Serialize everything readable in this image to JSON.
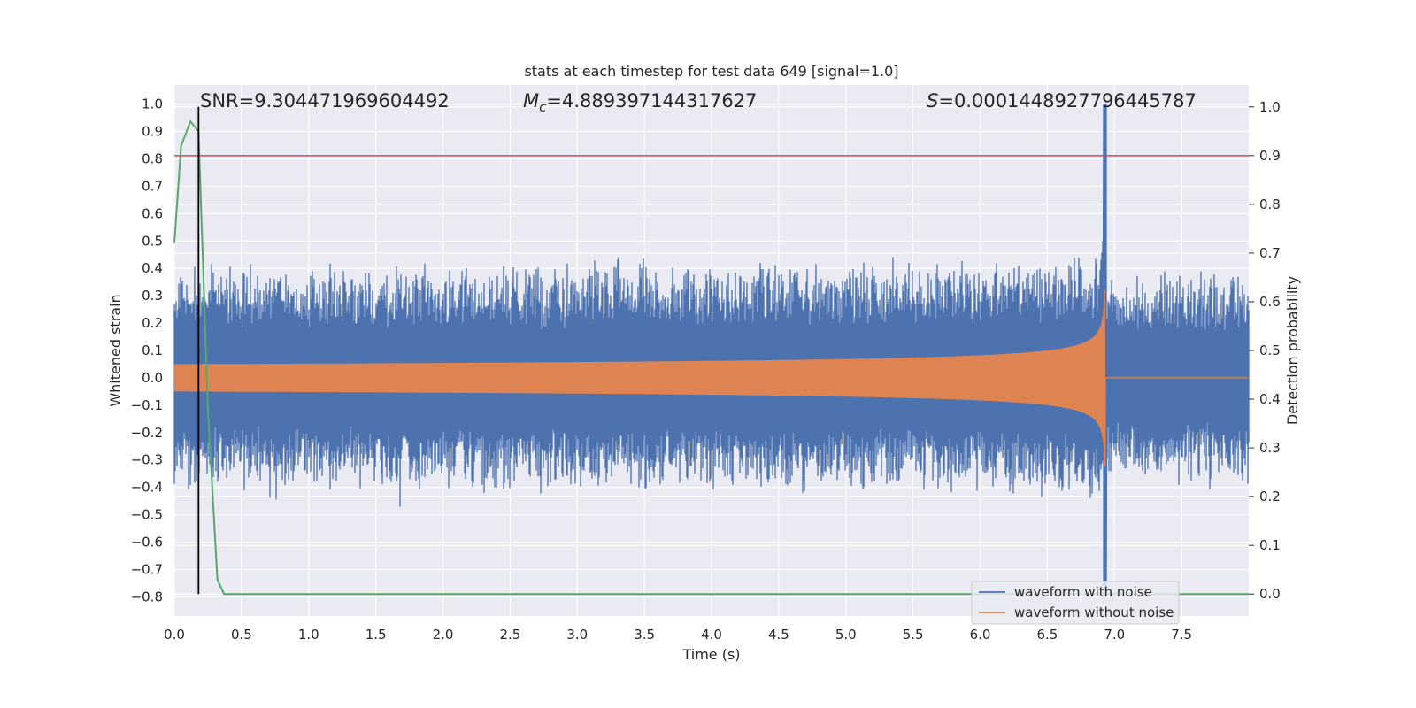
{
  "chart_data": {
    "type": "line",
    "title": "stats at each timestep for test data 649 [signal=1.0]",
    "xlabel": "Time (s)",
    "ylabel_left": "Whitened strain",
    "ylabel_right": "Detection probability",
    "xlim": [
      0.0,
      8.0
    ],
    "ylim_left": [
      -0.87,
      1.07
    ],
    "ylim_right": [
      -0.045,
      1.045
    ],
    "x_ticks": [
      "0.0",
      "0.5",
      "1.0",
      "1.5",
      "2.0",
      "2.5",
      "3.0",
      "3.5",
      "4.0",
      "4.5",
      "5.0",
      "5.5",
      "6.0",
      "6.5",
      "7.0",
      "7.5"
    ],
    "y_left_ticks": [
      "−0.8",
      "−0.7",
      "−0.6",
      "−0.5",
      "−0.4",
      "−0.3",
      "−0.2",
      "−0.1",
      "0.0",
      "0.1",
      "0.2",
      "0.3",
      "0.4",
      "0.5",
      "0.6",
      "0.7",
      "0.8",
      "0.9",
      "1.0"
    ],
    "y_right_ticks": [
      "0.0",
      "0.1",
      "0.2",
      "0.3",
      "0.4",
      "0.5",
      "0.6",
      "0.7",
      "0.8",
      "0.9",
      "1.0"
    ],
    "grid": true,
    "legend_position": "lower-right",
    "annotations": {
      "snr": "SNR=9.304471969604492",
      "mc_prefix": "M",
      "mc_sub": "c",
      "mc_value": "=4.889397144317627",
      "s_prefix": "S",
      "s_value": "=0.0001448927796445787"
    },
    "series": [
      {
        "name": "waveform with noise",
        "color": "#4c72b0",
        "axis": "left",
        "noise_envelope": 0.4,
        "merger_time": 6.93,
        "peak": 1.0,
        "trough": -0.8
      },
      {
        "name": "waveform without noise",
        "color": "#dd8452",
        "axis": "left",
        "chirp_start_amplitude": 0.05,
        "peak_amplitude": 0.73,
        "merger_time": 6.93
      },
      {
        "color": "#55a868",
        "axis": "right",
        "x": [
          0.0,
          0.05,
          0.12,
          0.18,
          0.25,
          0.32,
          0.37,
          8.0
        ],
        "y": [
          0.72,
          0.92,
          0.97,
          0.95,
          0.38,
          0.03,
          0.0,
          0.0
        ]
      }
    ],
    "reference_lines": {
      "threshold_right_axis": 0.9,
      "threshold_color": "#c44e52",
      "vertical_line_x": 0.18
    }
  }
}
